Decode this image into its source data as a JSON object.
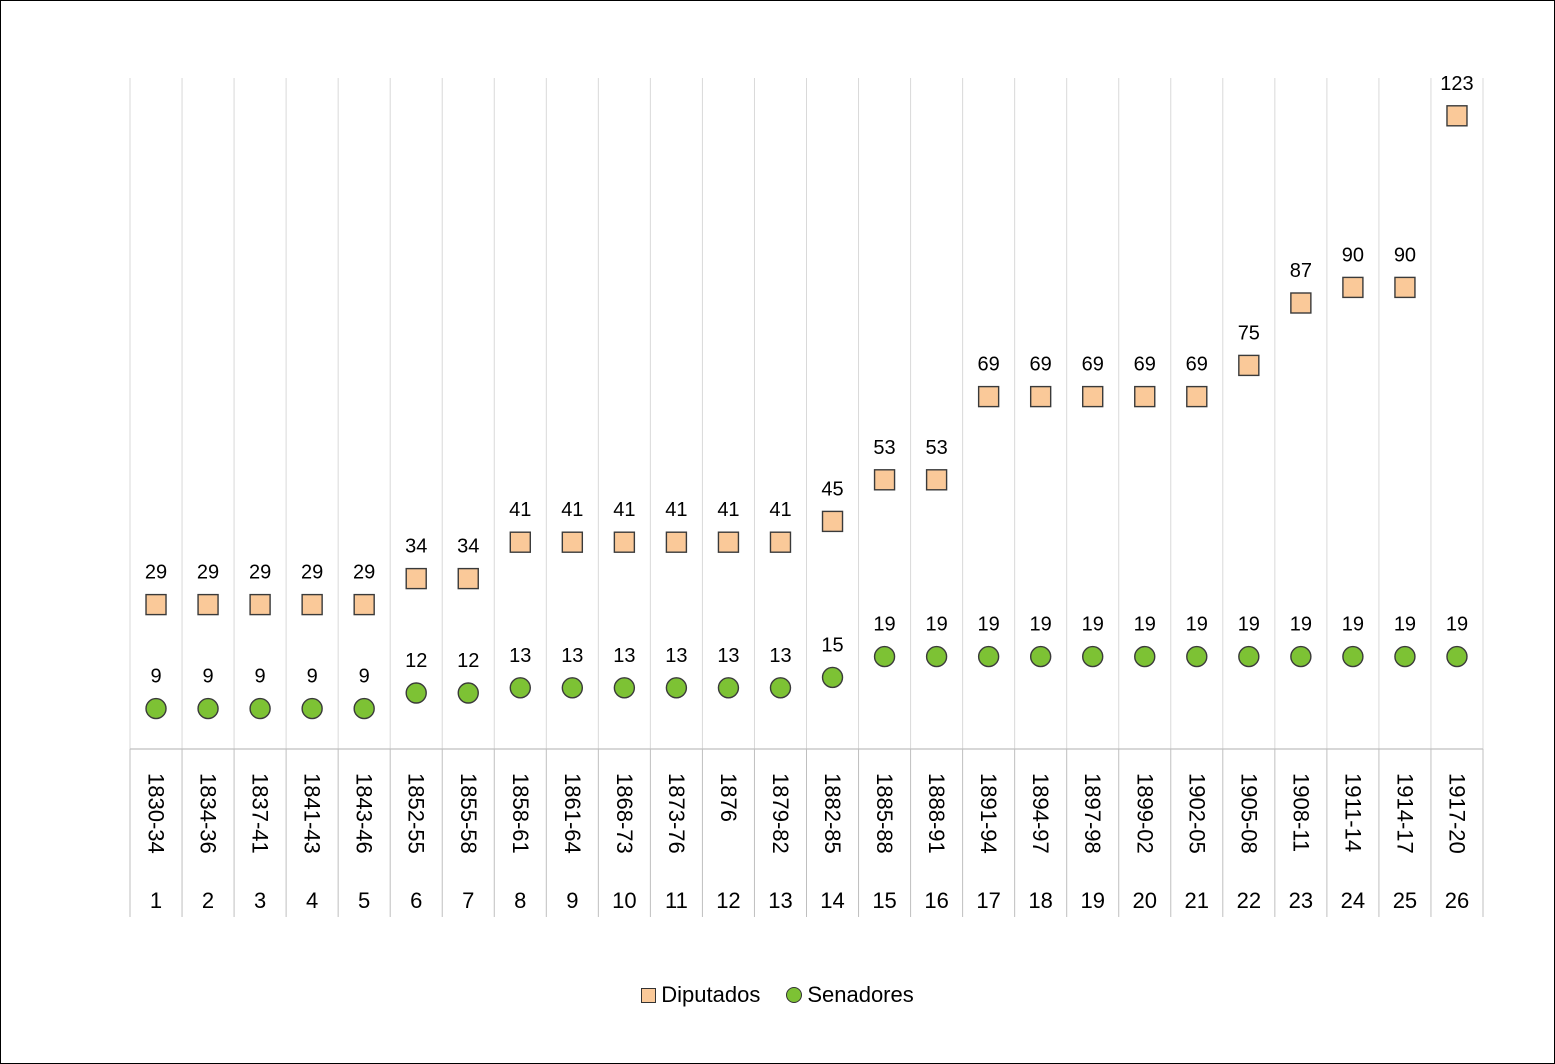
{
  "chart_data": {
    "type": "scatter",
    "x_index": [
      "1",
      "2",
      "3",
      "4",
      "5",
      "6",
      "7",
      "8",
      "9",
      "10",
      "11",
      "12",
      "13",
      "14",
      "15",
      "16",
      "17",
      "18",
      "19",
      "20",
      "21",
      "22",
      "23",
      "24",
      "25",
      "26"
    ],
    "categories": [
      "1830-34",
      "1834-36",
      "1837-41",
      "1841-43",
      "1843-46",
      "1852-55",
      "1855-58",
      "1858-61",
      "1861-64",
      "1868-73",
      "1873-76",
      "1876",
      "1879-82",
      "1882-85",
      "1885-88",
      "1888-91",
      "1891-94",
      "1894-97",
      "1897-98",
      "1899-02",
      "1902-05",
      "1905-08",
      "1908-11",
      "1911-14",
      "1914-17",
      "1917-20"
    ],
    "series": [
      {
        "name": "Diputados",
        "marker": "square",
        "color": "#FAC999",
        "values": [
          29,
          29,
          29,
          29,
          29,
          34,
          34,
          41,
          41,
          41,
          41,
          41,
          41,
          45,
          53,
          53,
          69,
          69,
          69,
          69,
          69,
          75,
          87,
          90,
          90,
          123
        ]
      },
      {
        "name": "Senadores",
        "marker": "circle",
        "color": "#7DC234",
        "values": [
          9,
          9,
          9,
          9,
          9,
          12,
          12,
          13,
          13,
          13,
          13,
          13,
          13,
          15,
          19,
          19,
          19,
          19,
          19,
          19,
          19,
          19,
          19,
          19,
          19,
          19
        ]
      }
    ],
    "data_labels": true,
    "grid": "vertical",
    "legend_position": "bottom",
    "title": "",
    "xlabel": "",
    "ylabel": ""
  }
}
